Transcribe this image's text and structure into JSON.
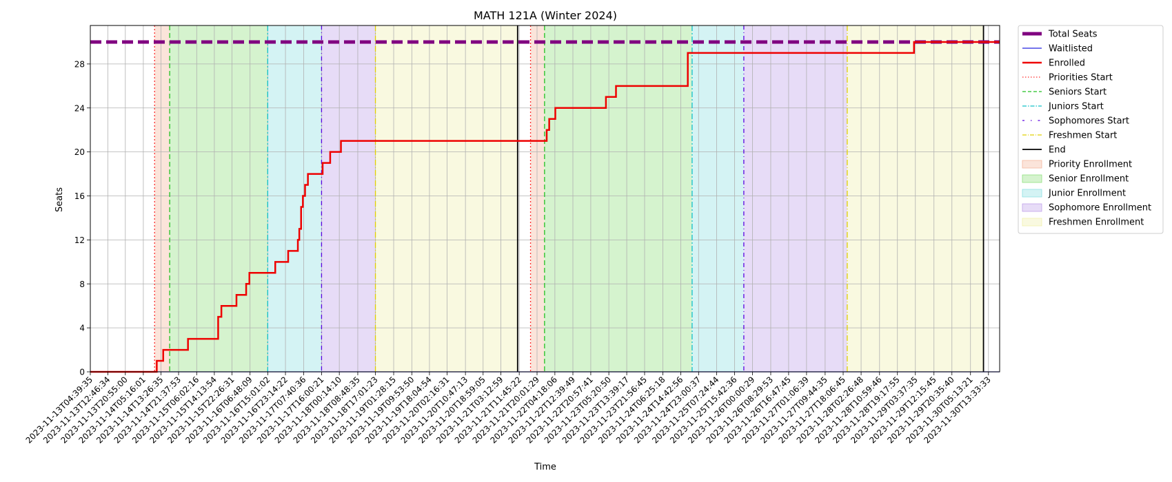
{
  "chart_data": {
    "type": "line",
    "title": "MATH 121A (Winter 2024)",
    "xlabel": "Time",
    "ylabel": "Seats",
    "ylim": [
      0,
      31.5
    ],
    "xlim": [
      "2023-11-13T04:39:35",
      "2023-11-30T18:45:00"
    ],
    "grid": true,
    "legend_position": "outside-right",
    "y_ticks": [
      0,
      4,
      8,
      12,
      16,
      20,
      24,
      28
    ],
    "x_ticks": [
      "2023-11-13T04:39:35",
      "2023-11-13T12:46:34",
      "2023-11-13T20:55:00",
      "2023-11-14T05:16:01",
      "2023-11-14T13:26:35",
      "2023-11-14T21:37:53",
      "2023-11-15T06:02:16",
      "2023-11-15T14:13:54",
      "2023-11-15T22:26:31",
      "2023-11-16T06:48:09",
      "2023-11-16T15:01:02",
      "2023-11-16T23:14:22",
      "2023-11-17T07:40:36",
      "2023-11-17T16:00:21",
      "2023-11-18T00:14:10",
      "2023-11-18T08:48:35",
      "2023-11-18T17:01:23",
      "2023-11-19T01:28:15",
      "2023-11-19T09:53:50",
      "2023-11-19T18:04:54",
      "2023-11-20T02:16:31",
      "2023-11-20T10:47:13",
      "2023-11-20T18:59:05",
      "2023-11-21T03:12:59",
      "2023-11-21T11:45:22",
      "2023-11-21T20:01:29",
      "2023-11-22T04:18:06",
      "2023-11-22T12:39:49",
      "2023-11-22T20:57:41",
      "2023-11-23T05:20:50",
      "2023-11-23T13:39:17",
      "2023-11-23T21:56:45",
      "2023-11-24T06:25:18",
      "2023-11-24T14:42:56",
      "2023-11-24T23:00:37",
      "2023-11-25T07:24:44",
      "2023-11-25T15:42:36",
      "2023-11-26T00:00:29",
      "2023-11-26T08:29:53",
      "2023-11-26T16:47:45",
      "2023-11-27T01:06:39",
      "2023-11-27T09:44:35",
      "2023-11-27T18:06:45",
      "2023-11-28T02:26:48",
      "2023-11-28T10:59:46",
      "2023-11-28T19:17:55",
      "2023-11-29T03:37:35",
      "2023-11-29T12:15:45",
      "2023-11-29T20:35:40",
      "2023-11-30T05:13:21",
      "2023-11-30T13:33:33"
    ],
    "periods": [
      {
        "name": "Priority Enrollment",
        "color": "#f4b89d",
        "start": "2023-11-14T10:30:00",
        "end": "2023-11-14T17:30:00"
      },
      {
        "name": "Senior Enrollment",
        "color": "#90e07f",
        "start": "2023-11-14T17:30:00",
        "end": "2023-11-16T15:00:00"
      },
      {
        "name": "Junior Enrollment",
        "color": "#8ee0e3",
        "start": "2023-11-16T15:00:00",
        "end": "2023-11-17T16:00:00"
      },
      {
        "name": "Sophomore Enrollment",
        "color": "#c0a2ea",
        "start": "2023-11-17T16:00:00",
        "end": "2023-11-18T17:00:00"
      },
      {
        "name": "Freshmen Enrollment",
        "color": "#f0f0ad",
        "start": "2023-11-18T17:00:00",
        "end": "2023-11-21T11:00:00"
      },
      {
        "name": "Priority Enrollment",
        "color": "#f4b89d",
        "start": "2023-11-21T17:00:00",
        "end": "2023-11-21T23:30:00"
      },
      {
        "name": "Senior Enrollment",
        "color": "#90e07f",
        "start": "2023-11-21T23:30:00",
        "end": "2023-11-24T20:00:00"
      },
      {
        "name": "Junior Enrollment",
        "color": "#8ee0e3",
        "start": "2023-11-24T20:00:00",
        "end": "2023-11-25T20:00:00"
      },
      {
        "name": "Sophomore Enrollment",
        "color": "#c0a2ea",
        "start": "2023-11-25T20:00:00",
        "end": "2023-11-27T20:00:00"
      },
      {
        "name": "Freshmen Enrollment",
        "color": "#f0f0ad",
        "start": "2023-11-27T20:00:00",
        "end": "2023-11-30T11:15:00"
      }
    ],
    "markers": [
      {
        "name": "Priorities Start",
        "color": "#ff2a2a",
        "dash": "2,3",
        "at": [
          "2023-11-14T10:30:00",
          "2023-11-21T17:00:00"
        ]
      },
      {
        "name": "Seniors Start",
        "color": "#22c022",
        "dash": "7,4",
        "at": [
          "2023-11-14T17:30:00",
          "2023-11-21T23:30:00"
        ]
      },
      {
        "name": "Juniors Start",
        "color": "#10c0c8",
        "dash": "8,3,2,3",
        "at": [
          "2023-11-16T15:00:00",
          "2023-11-24T20:00:00"
        ]
      },
      {
        "name": "Sophomores Start",
        "color": "#5a00e0",
        "dash": "6,4,1,4",
        "at": [
          "2023-11-17T16:00:00",
          "2023-11-25T20:00:00"
        ]
      },
      {
        "name": "Freshmen Start",
        "color": "#e0d000",
        "dash": "8,3,1,3",
        "at": [
          "2023-11-18T17:00:00",
          "2023-11-27T20:00:00"
        ]
      },
      {
        "name": "End",
        "color": "#000000",
        "dash": "",
        "at": [
          "2023-11-21T11:00:00",
          "2023-11-30T11:15:00"
        ]
      }
    ],
    "series": [
      {
        "name": "Total Seats",
        "color": "#800080",
        "style": "dashed-thick",
        "points": [
          [
            "2023-11-13T04:39:35",
            30
          ],
          [
            "2023-11-30T18:45:00",
            30
          ]
        ]
      },
      {
        "name": "Waitlisted",
        "color": "#2020e0",
        "style": "solid-thin",
        "points": [
          [
            "2023-11-13T04:39:35",
            0
          ],
          [
            "2023-11-30T18:45:00",
            0
          ]
        ]
      },
      {
        "name": "Enrolled",
        "color": "#ee0000",
        "style": "step",
        "points": [
          [
            "2023-11-13T04:39:35",
            0
          ],
          [
            "2023-11-14T11:00:00",
            0
          ],
          [
            "2023-11-14T11:30:00",
            1
          ],
          [
            "2023-11-14T14:30:00",
            2
          ],
          [
            "2023-11-15T02:00:00",
            3
          ],
          [
            "2023-11-15T16:00:00",
            5
          ],
          [
            "2023-11-15T17:30:00",
            6
          ],
          [
            "2023-11-16T00:30:00",
            7
          ],
          [
            "2023-11-16T05:00:00",
            8
          ],
          [
            "2023-11-16T06:30:00",
            9
          ],
          [
            "2023-11-16T18:30:00",
            10
          ],
          [
            "2023-11-17T00:30:00",
            11
          ],
          [
            "2023-11-17T05:00:00",
            12
          ],
          [
            "2023-11-17T05:40:00",
            13
          ],
          [
            "2023-11-17T06:30:00",
            15
          ],
          [
            "2023-11-17T07:20:00",
            16
          ],
          [
            "2023-11-17T08:20:00",
            17
          ],
          [
            "2023-11-17T09:40:00",
            18
          ],
          [
            "2023-11-17T16:30:00",
            19
          ],
          [
            "2023-11-17T20:00:00",
            20
          ],
          [
            "2023-11-18T01:00:00",
            21
          ],
          [
            "2023-11-22T00:30:00",
            22
          ],
          [
            "2023-11-22T01:40:00",
            23
          ],
          [
            "2023-11-22T04:30:00",
            24
          ],
          [
            "2023-11-23T04:00:00",
            25
          ],
          [
            "2023-11-23T08:40:00",
            26
          ],
          [
            "2023-11-24T18:00:00",
            29
          ],
          [
            "2023-11-29T03:00:00",
            30
          ],
          [
            "2023-11-30T18:45:00",
            30
          ]
        ]
      }
    ],
    "legend": [
      {
        "label": "Total Seats",
        "kind": "line",
        "color": "#800080",
        "width": 5,
        "dash": ""
      },
      {
        "label": "Waitlisted",
        "kind": "line",
        "color": "#2020e0",
        "width": 1.3,
        "dash": ""
      },
      {
        "label": "Enrolled",
        "kind": "line",
        "color": "#ee0000",
        "width": 2.5,
        "dash": ""
      },
      {
        "label": "Priorities Start",
        "kind": "line",
        "color": "#ff2a2a",
        "width": 1.3,
        "dash": "1.5,2.5"
      },
      {
        "label": "Seniors Start",
        "kind": "line",
        "color": "#22c022",
        "width": 1.3,
        "dash": "5,3"
      },
      {
        "label": "Juniors Start",
        "kind": "line",
        "color": "#10c0c8",
        "width": 1.3,
        "dash": "6,2,1.5,2"
      },
      {
        "label": "Sophomores Start",
        "kind": "line",
        "color": "#5a00e0",
        "width": 1.3,
        "dash": "3,9,1.5,9"
      },
      {
        "label": "Freshmen Start",
        "kind": "line",
        "color": "#e0d000",
        "width": 1.3,
        "dash": "6,2,1,2"
      },
      {
        "label": "End",
        "kind": "line",
        "color": "#000000",
        "width": 1.8,
        "dash": ""
      },
      {
        "label": "Priority Enrollment",
        "kind": "patch",
        "color": "#f4b89d"
      },
      {
        "label": "Senior Enrollment",
        "kind": "patch",
        "color": "#90e07f"
      },
      {
        "label": "Junior Enrollment",
        "kind": "patch",
        "color": "#8ee0e3"
      },
      {
        "label": "Sophomore Enrollment",
        "kind": "patch",
        "color": "#c0a2ea"
      },
      {
        "label": "Freshmen Enrollment",
        "kind": "patch",
        "color": "#f0f0ad"
      }
    ]
  }
}
